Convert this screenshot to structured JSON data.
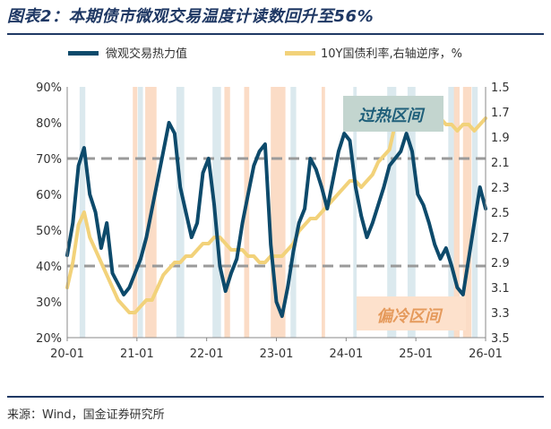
{
  "header": {
    "title": "图表2：本期债市微观交易温度计读数回升至56%"
  },
  "footer": {
    "source": "来源：Wind，国金证券研究所"
  },
  "chart_data": {
    "type": "line",
    "legend": [
      {
        "name": "微观交易热力值",
        "color": "#0d4a6b"
      },
      {
        "name": "10Y国债利率,右轴逆序，%",
        "color": "#f2d27a"
      }
    ],
    "x_ticks": [
      "20-01",
      "21-01",
      "22-01",
      "23-01",
      "24-01",
      "25-01",
      "26-01"
    ],
    "x_range": [
      0,
      74
    ],
    "left_axis": {
      "ticks": [
        "90%",
        "80%",
        "70%",
        "60%",
        "50%",
        "40%",
        "30%",
        "20%"
      ],
      "range": [
        20,
        90
      ]
    },
    "right_axis": {
      "ticks": [
        "1.5",
        "1.7",
        "1.9",
        "2.1",
        "2.3",
        "2.5",
        "2.7",
        "2.9",
        "3.1",
        "3.3",
        "3.5"
      ],
      "range": [
        1.5,
        3.5
      ],
      "inverted": true
    },
    "threshold_lines": [
      70,
      40
    ],
    "annotations": {
      "overheat": "过热区间",
      "cold": "偏冷区间"
    },
    "blue_bands": [
      [
        2.2,
        3.2
      ],
      [
        12.5,
        13.4
      ],
      [
        19.3,
        20.7
      ],
      [
        25.7,
        27.2
      ],
      [
        39.5,
        40.5
      ],
      [
        50.6,
        51.2
      ],
      [
        56.6,
        58.2
      ],
      [
        60.2,
        61.6
      ],
      [
        67.4,
        68.6
      ],
      [
        71.6,
        72.6
      ]
    ],
    "orange_bands": [
      [
        11.6,
        12.4
      ],
      [
        13.8,
        15.8
      ],
      [
        27.8,
        28.8
      ],
      [
        31.3,
        32.2
      ],
      [
        36.0,
        38.6
      ],
      [
        45.0,
        45.6
      ],
      [
        68.4,
        69.4
      ],
      [
        70.0,
        71.5
      ]
    ],
    "series": [
      {
        "name": "微观交易热力值",
        "x": [
          0,
          1,
          2,
          3,
          4,
          5,
          6,
          7,
          8,
          9,
          10,
          11,
          12,
          13,
          14,
          15,
          16,
          17,
          18,
          19,
          20,
          21,
          22,
          23,
          24,
          25,
          26,
          27,
          28,
          29,
          30,
          31,
          32,
          33,
          34,
          35,
          36,
          37,
          38,
          39,
          40,
          41,
          42,
          43,
          44,
          45,
          46,
          47,
          48,
          49,
          50,
          51,
          52,
          53,
          54,
          55,
          56,
          57,
          58,
          59,
          60,
          61,
          62,
          63,
          64,
          65,
          66,
          67,
          68,
          69,
          70,
          71,
          72,
          73,
          74
        ],
        "values": [
          43,
          52,
          68,
          73,
          60,
          55,
          45,
          52,
          38,
          35,
          32,
          34,
          38,
          42,
          48,
          56,
          64,
          72,
          80,
          77,
          62,
          55,
          48,
          52,
          66,
          70,
          57,
          40,
          33,
          38,
          42,
          52,
          60,
          68,
          72,
          74,
          46,
          30,
          26,
          34,
          44,
          52,
          56,
          70,
          67,
          62,
          56,
          64,
          72,
          77,
          75,
          62,
          54,
          48,
          52,
          57,
          62,
          68,
          70,
          72,
          77,
          72,
          60,
          57,
          52,
          46,
          42,
          45,
          40,
          34,
          32,
          42,
          52,
          62,
          56
        ]
      },
      {
        "name": "10Y国债利率,右轴逆序，%",
        "x": [
          0,
          1,
          2,
          3,
          4,
          5,
          6,
          7,
          8,
          9,
          10,
          11,
          12,
          13,
          14,
          15,
          16,
          17,
          18,
          19,
          20,
          21,
          22,
          23,
          24,
          25,
          26,
          27,
          28,
          29,
          30,
          31,
          32,
          33,
          34,
          35,
          36,
          37,
          38,
          39,
          40,
          41,
          42,
          43,
          44,
          45,
          46,
          47,
          48,
          49,
          50,
          51,
          52,
          53,
          54,
          55,
          56,
          57,
          58,
          59,
          60,
          61,
          62,
          63,
          64,
          65,
          66,
          67,
          68,
          69,
          70,
          71,
          72,
          73,
          74
        ],
        "values": [
          3.1,
          2.9,
          2.6,
          2.5,
          2.7,
          2.8,
          2.9,
          3.0,
          3.1,
          3.2,
          3.25,
          3.3,
          3.3,
          3.25,
          3.2,
          3.2,
          3.1,
          3.0,
          2.95,
          2.9,
          2.9,
          2.85,
          2.85,
          2.8,
          2.75,
          2.75,
          2.7,
          2.7,
          2.75,
          2.8,
          2.8,
          2.8,
          2.85,
          2.85,
          2.9,
          2.9,
          2.85,
          2.85,
          2.85,
          2.8,
          2.75,
          2.65,
          2.6,
          2.55,
          2.55,
          2.5,
          2.45,
          2.4,
          2.35,
          2.3,
          2.25,
          2.25,
          2.3,
          2.25,
          2.2,
          2.1,
          2.05,
          2.0,
          1.8,
          1.65,
          1.7,
          1.75,
          1.8,
          1.75,
          1.8,
          1.8,
          1.75,
          1.8,
          1.8,
          1.85,
          1.8,
          1.8,
          1.85,
          1.8,
          1.75
        ]
      }
    ]
  }
}
